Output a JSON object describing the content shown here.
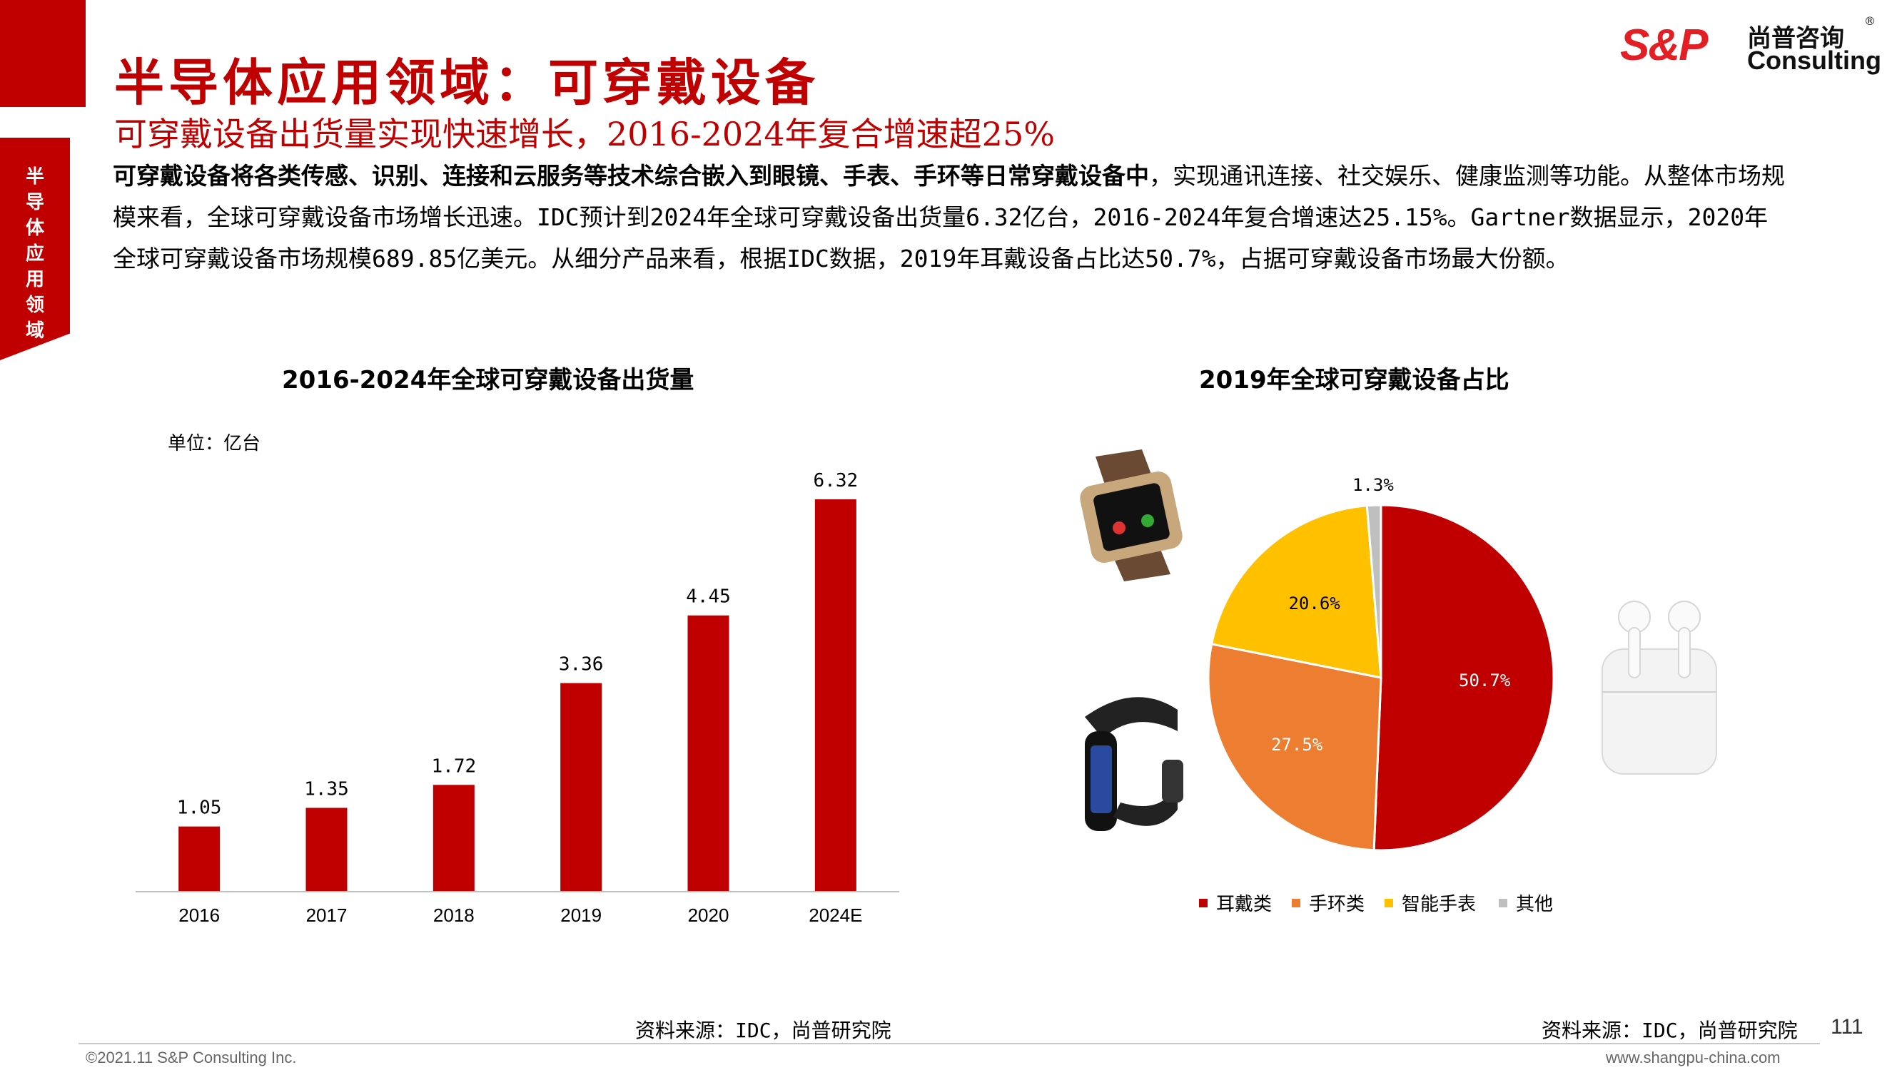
{
  "side_tab": "半导体应用领域",
  "title": "半导体应用领域：可穿戴设备",
  "subtitle": "可穿戴设备出货量实现快速增长，2016-2024年复合增速超25%",
  "logo": {
    "mark": "S&P",
    "cn": "尚普咨询",
    "en": "Consulting",
    "reg": "®"
  },
  "intro": {
    "bold": "可穿戴设备将各类传感、识别、连接和云服务等技术综合嵌入到眼镜、手表、手环等日常穿戴设备中",
    "rest": "，实现通讯连接、社交娱乐、健康监测等功能。从整体市场规模来看，全球可穿戴设备市场增长迅速。IDC预计到2024年全球可穿戴设备出货量6.32亿台，2016-2024年复合增速达25.15%。Gartner数据显示，2020年全球可穿戴设备市场规模689.85亿美元。从细分产品来看，根据IDC数据，2019年耳戴设备占比达50.7%，占据可穿戴设备市场最大份额。"
  },
  "chart_data": [
    {
      "type": "bar",
      "title": "2016-2024年全球可穿戴设备出货量",
      "unit_label": "单位：亿台",
      "categories": [
        "2016",
        "2017",
        "2018",
        "2019",
        "2020",
        "2024E"
      ],
      "values": [
        1.05,
        1.35,
        1.72,
        3.36,
        4.45,
        6.32
      ],
      "value_labels": [
        "1.05",
        "1.35",
        "1.72",
        "3.36",
        "4.45",
        "6.32"
      ],
      "ylim": [
        0,
        6.32
      ],
      "color": "#c00000",
      "grid": false
    },
    {
      "type": "pie",
      "title": "2019年全球可穿戴设备占比",
      "labels": [
        "耳戴类",
        "手环类",
        "智能手表",
        "其他"
      ],
      "values": [
        50.7,
        27.5,
        20.6,
        1.3
      ],
      "value_labels": [
        "50.7%",
        "27.5%",
        "20.6%",
        "1.3%"
      ],
      "colors": [
        "#c00000",
        "#ed7d31",
        "#ffc000",
        "#bfbfbf"
      ],
      "legend_position": "bottom"
    }
  ],
  "source_left": "资料来源：IDC，尚普研究院",
  "source_right": "资料来源：IDC，尚普研究院",
  "page_number": "111",
  "copyright": "©2021.11  S&P Consulting Inc.",
  "website": "www.shangpu-china.com",
  "images": {
    "smartwatch": "smartwatch-icon",
    "band": "fitness-band-icon",
    "earbuds": "earbuds-icon"
  }
}
